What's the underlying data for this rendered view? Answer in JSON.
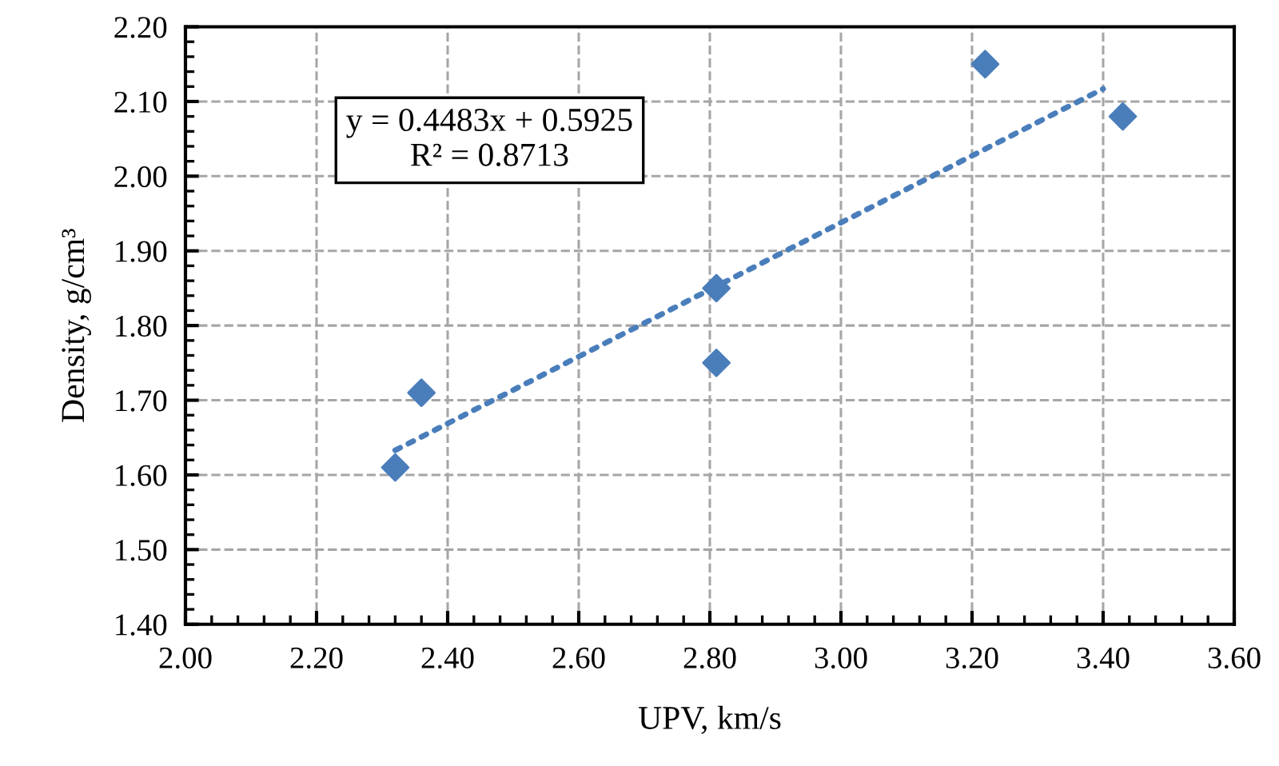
{
  "chart_data": {
    "type": "scatter",
    "xlabel": "UPV, km/s",
    "ylabel": "Density, g/cm³",
    "x": [
      2.32,
      2.36,
      2.81,
      2.81,
      3.22,
      3.43
    ],
    "series": [
      {
        "color": "#4a7ebb",
        "marker": "diamond",
        "values": [
          1.61,
          1.71,
          1.85,
          1.75,
          2.15,
          2.08
        ]
      },
      {
        "type": "line",
        "color": "#4a7ebb",
        "line_style": "dotted",
        "marker": "none",
        "x": [
          2.32,
          3.4
        ],
        "values": [
          1.633,
          2.117
        ]
      }
    ],
    "annotations": [
      "y = 0.4483x + 0.5925",
      "R² = 0.8713"
    ],
    "xlim": [
      2.0,
      3.6
    ],
    "xticks": [
      {
        "value": 2.0,
        "label": "2.00"
      },
      {
        "value": 2.2,
        "label": "2.20"
      },
      {
        "value": 2.4,
        "label": "2.40"
      },
      {
        "value": 2.6,
        "label": "2.60"
      },
      {
        "value": 2.8,
        "label": "2.80"
      },
      {
        "value": 3.0,
        "label": "3.00"
      },
      {
        "value": 3.2,
        "label": "3.20"
      },
      {
        "value": 3.4,
        "label": "3.40"
      },
      {
        "value": 3.6,
        "label": "3.60"
      }
    ],
    "ylim": [
      1.4,
      2.2
    ],
    "yticks": [
      {
        "value": 1.4,
        "label": "1.40"
      },
      {
        "value": 1.5,
        "label": "1.50"
      },
      {
        "value": 1.6,
        "label": "1.60"
      },
      {
        "value": 1.7,
        "label": "1.70"
      },
      {
        "value": 1.8,
        "label": "1.80"
      },
      {
        "value": 1.9,
        "label": "1.90"
      },
      {
        "value": 2.0,
        "label": "2.00"
      },
      {
        "value": 2.1,
        "label": "2.10"
      },
      {
        "value": 2.2,
        "label": "2.20"
      }
    ],
    "grid": true
  }
}
